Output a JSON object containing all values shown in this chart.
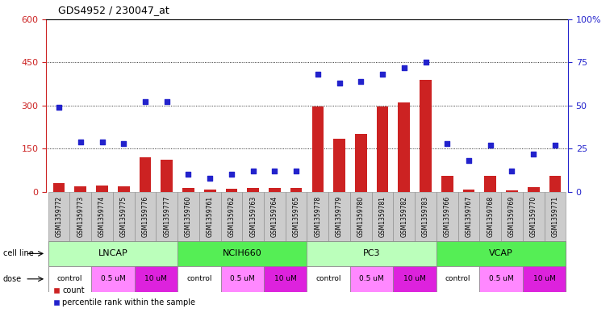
{
  "title": "GDS4952 / 230047_at",
  "samples": [
    "GSM1359772",
    "GSM1359773",
    "GSM1359774",
    "GSM1359775",
    "GSM1359776",
    "GSM1359777",
    "GSM1359760",
    "GSM1359761",
    "GSM1359762",
    "GSM1359763",
    "GSM1359764",
    "GSM1359765",
    "GSM1359778",
    "GSM1359779",
    "GSM1359780",
    "GSM1359781",
    "GSM1359782",
    "GSM1359783",
    "GSM1359766",
    "GSM1359767",
    "GSM1359768",
    "GSM1359769",
    "GSM1359770",
    "GSM1359771"
  ],
  "counts": [
    30,
    18,
    22,
    18,
    120,
    110,
    12,
    8,
    10,
    14,
    12,
    12,
    295,
    185,
    200,
    295,
    310,
    390,
    55,
    8,
    55,
    5,
    15,
    55
  ],
  "percentiles": [
    49,
    29,
    29,
    28,
    52,
    52,
    10,
    8,
    10,
    12,
    12,
    12,
    68,
    63,
    64,
    68,
    72,
    75,
    28,
    18,
    27,
    12,
    22,
    27
  ],
  "cell_lines": [
    "LNCAP",
    "NCIH660",
    "PC3",
    "VCAP"
  ],
  "cell_line_spans": [
    [
      0,
      6
    ],
    [
      6,
      12
    ],
    [
      12,
      18
    ],
    [
      18,
      24
    ]
  ],
  "cell_line_colors": [
    "#bbffbb",
    "#55ee55",
    "#bbffbb",
    "#55ee55"
  ],
  "dose_groups": [
    {
      "label": "control",
      "start": 0,
      "end": 2
    },
    {
      "label": "0.5 uM",
      "start": 2,
      "end": 4
    },
    {
      "label": "10 uM",
      "start": 4,
      "end": 6
    },
    {
      "label": "control",
      "start": 6,
      "end": 8
    },
    {
      "label": "0.5 uM",
      "start": 8,
      "end": 10
    },
    {
      "label": "10 uM",
      "start": 10,
      "end": 12
    },
    {
      "label": "control",
      "start": 12,
      "end": 14
    },
    {
      "label": "0.5 uM",
      "start": 14,
      "end": 16
    },
    {
      "label": "10 uM",
      "start": 16,
      "end": 18
    },
    {
      "label": "control",
      "start": 18,
      "end": 20
    },
    {
      "label": "0.5 uM",
      "start": 20,
      "end": 22
    },
    {
      "label": "10 uM",
      "start": 22,
      "end": 24
    }
  ],
  "dose_colors": {
    "control": "#ffffff",
    "0.5 uM": "#ff88ff",
    "10 uM": "#dd22dd"
  },
  "bar_color": "#cc2222",
  "dot_color": "#2222cc",
  "ylim_left": [
    0,
    600
  ],
  "ylim_right": [
    0,
    100
  ],
  "yticks_left": [
    0,
    150,
    300,
    450,
    600
  ],
  "yticks_right": [
    0,
    25,
    50,
    75,
    100
  ],
  "bg_color": "#ffffff",
  "left_axis_color": "#cc2222",
  "right_axis_color": "#2222cc",
  "sample_bg_color": "#cccccc",
  "sample_border_color": "#888888"
}
